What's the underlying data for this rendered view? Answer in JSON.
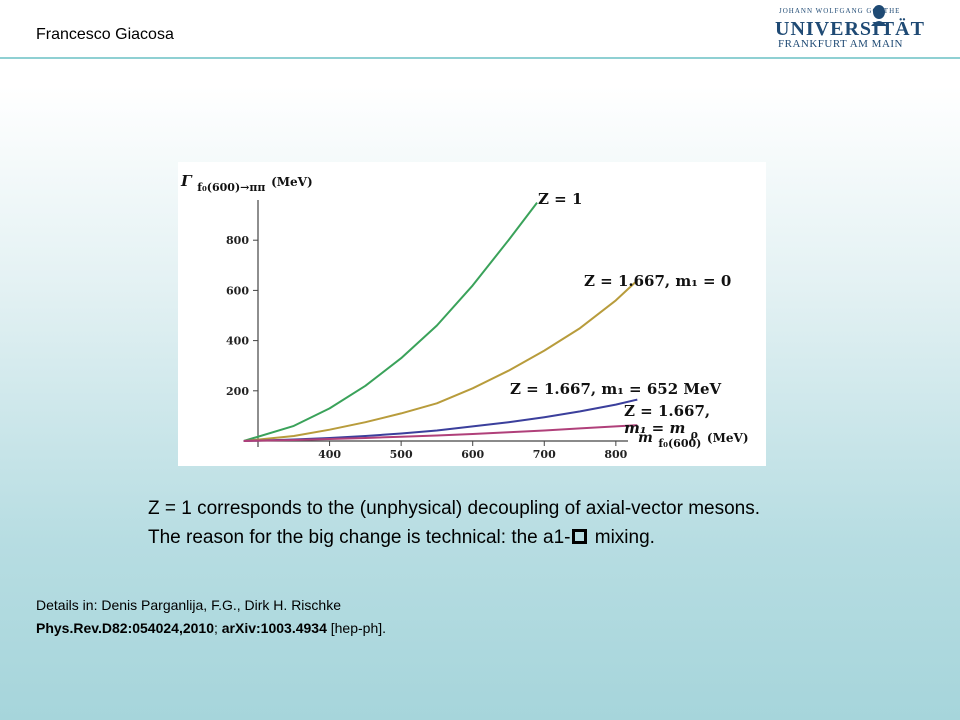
{
  "header": {
    "author": "Francesco Giacosa",
    "logo": {
      "line1": "JOHANN WOLFGANG GOETHE",
      "line2": "UNIVERSITÄT",
      "line3": "FRANKFURT AM MAIN"
    }
  },
  "colors": {
    "accent_line": "#8fd0d3",
    "curve_green": "#3aa25a",
    "curve_olive": "#b89c3c",
    "curve_blue": "#3b3f9c",
    "curve_magenta": "#b0407a"
  },
  "chart_data": {
    "type": "line",
    "ylabel_main": "Γ",
    "ylabel_sub": "f₀(600)→ππ",
    "ylabel_unit": "(MeV)",
    "xlabel_main": "m",
    "xlabel_sub": "f₀(600)",
    "xlabel_unit": "(MeV)",
    "xlim": [
      300,
      810
    ],
    "ylim": [
      0,
      1000
    ],
    "xticks": [
      400,
      500,
      600,
      700,
      800
    ],
    "yticks": [
      200,
      400,
      600,
      800
    ],
    "grid": false,
    "series": [
      {
        "name": "Z = 1",
        "color": "#3aa25a",
        "x": [
          280,
          350,
          400,
          450,
          500,
          550,
          600,
          650,
          690
        ],
        "y": [
          0,
          60,
          130,
          220,
          330,
          460,
          620,
          800,
          950
        ]
      },
      {
        "name": "Z = 1.667, m₁ = 0",
        "color": "#b89c3c",
        "x": [
          280,
          350,
          400,
          450,
          500,
          550,
          600,
          650,
          700,
          750,
          800,
          830
        ],
        "y": [
          0,
          20,
          45,
          75,
          110,
          150,
          210,
          280,
          360,
          450,
          560,
          640
        ]
      },
      {
        "name": "Z = 1.667, m₁ = 652 MeV",
        "color": "#3b3f9c",
        "x": [
          280,
          350,
          400,
          450,
          500,
          550,
          600,
          650,
          700,
          750,
          800,
          830
        ],
        "y": [
          0,
          6,
          12,
          20,
          30,
          42,
          58,
          75,
          95,
          118,
          145,
          165
        ]
      },
      {
        "name": "Z = 1.667, m₁ = m_ρ",
        "color": "#b0407a",
        "x": [
          280,
          350,
          400,
          450,
          500,
          550,
          600,
          650,
          700,
          750,
          800,
          830
        ],
        "y": [
          0,
          4,
          8,
          12,
          17,
          22,
          28,
          35,
          42,
          50,
          58,
          63
        ]
      }
    ],
    "annotations": [
      {
        "text": "Z = 1"
      },
      {
        "text": "Z = 1.667, m₁ = 0"
      },
      {
        "text": "Z = 1.667, m₁ = 652 MeV"
      },
      {
        "text": "Z = 1.667,"
      },
      {
        "text": "m₁ = m"
      },
      {
        "text": "ρ"
      }
    ]
  },
  "caption": {
    "line1": "Z = 1 corresponds to the (unphysical) decoupling of axial-vector mesons.",
    "line2_before": "The reason for the big change is technical: the a1-",
    "line2_after": " mixing."
  },
  "details": {
    "line1": "Details in: Denis Parganlija, F.G., Dirk H. Rischke",
    "ref1": "Phys.Rev.D82:054024,2010",
    "sep": "; ",
    "ref2": "arXiv:1003.4934",
    "tail": " [hep-ph]."
  }
}
